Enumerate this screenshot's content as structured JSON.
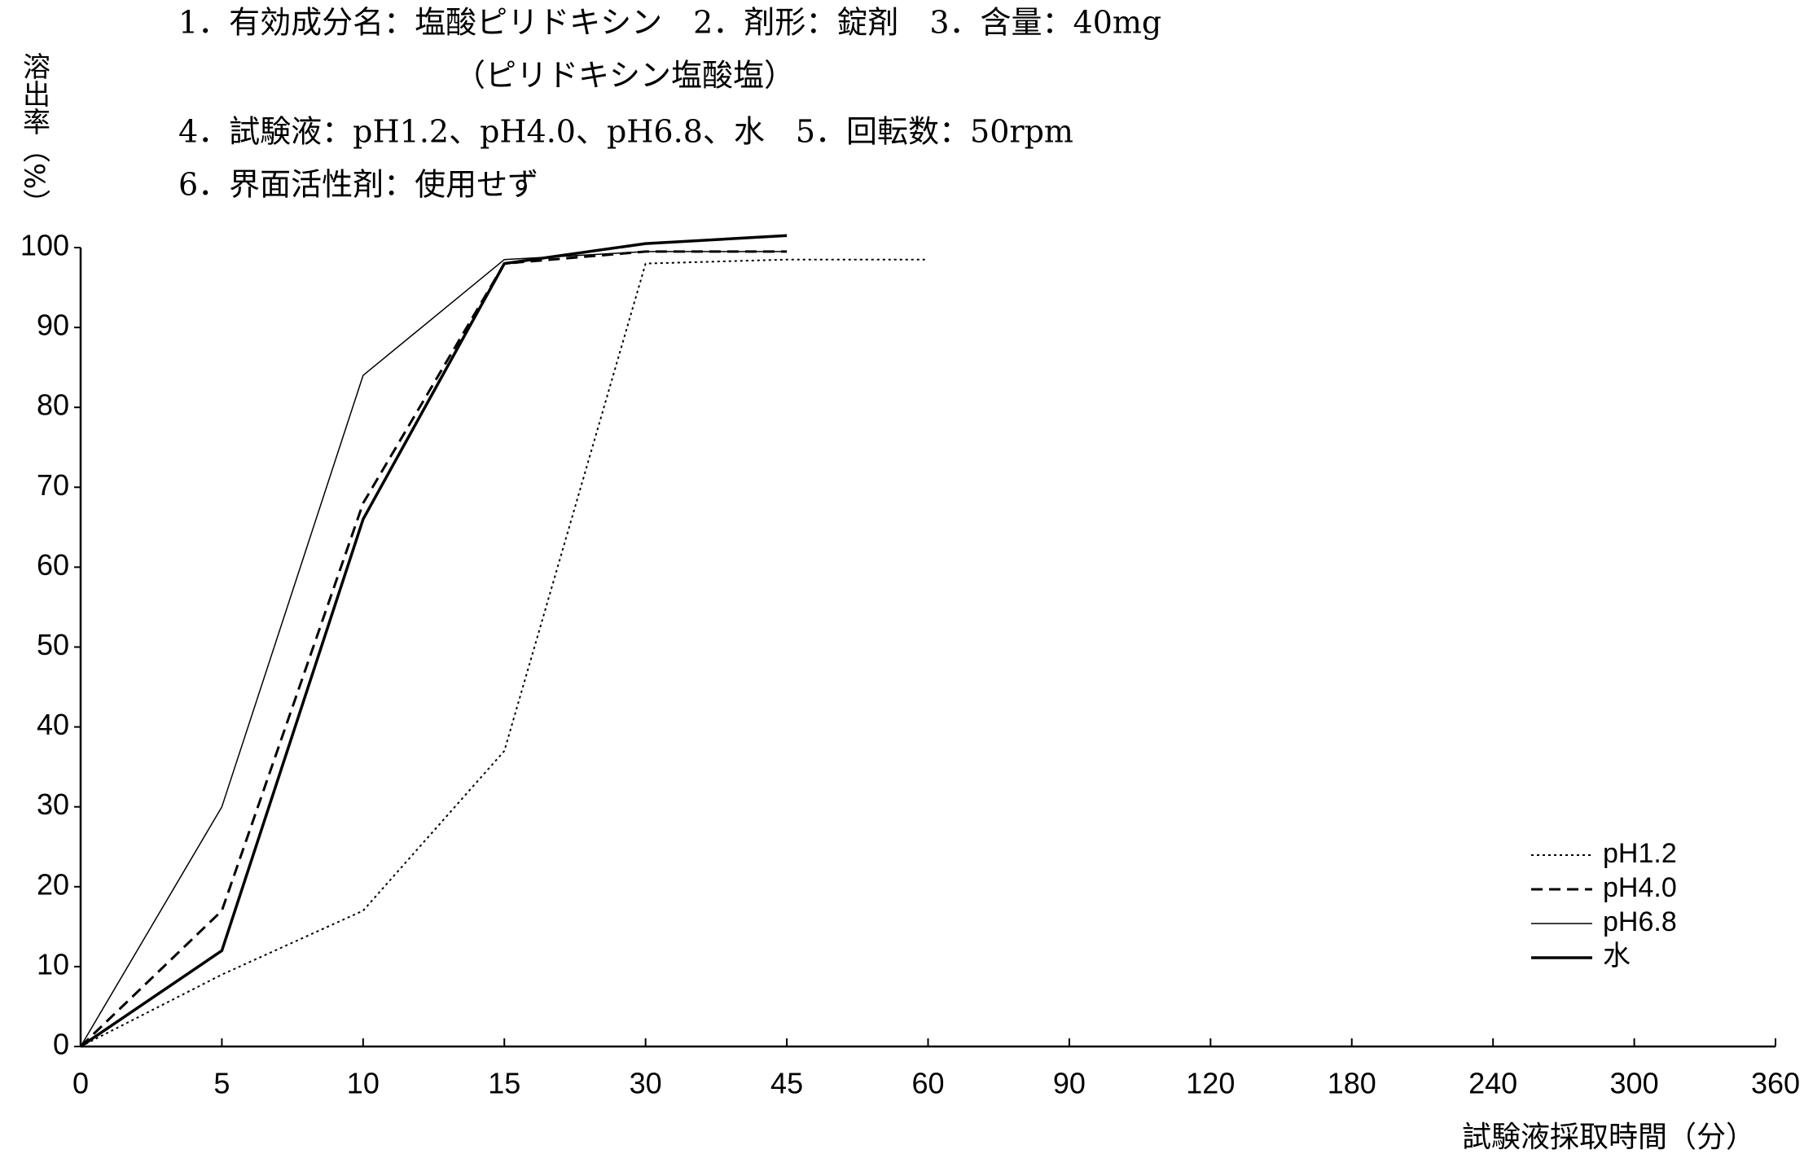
{
  "chart_data": {
    "type": "line",
    "header": [
      "1．有効成分名：塩酸ピリドキシン　2．剤形：錠剤　3．含量：40mg",
      "（ピリドキシン塩酸塩）",
      "4．試験液：pH1.2、pH4.0、pH6.8、水　5．回転数：50rpm",
      "6．界面活性剤：使用せず"
    ],
    "ylabel": "溶出率（%）",
    "xlabel": "試験液採取時間（分）",
    "categories": [
      "0",
      "5",
      "10",
      "15",
      "30",
      "45",
      "60",
      "90",
      "120",
      "180",
      "240",
      "300",
      "360"
    ],
    "series": [
      {
        "name": "pH1.2",
        "color": "#000000",
        "style": "dotted",
        "width": 2,
        "values": [
          0,
          9,
          17,
          37,
          98,
          98.5,
          98.5,
          null,
          null,
          null,
          null,
          null,
          null
        ]
      },
      {
        "name": "pH4.0",
        "color": "#000000",
        "style": "dashed",
        "width": 3,
        "values": [
          0,
          17,
          68,
          98,
          99.5,
          99.5,
          null,
          null,
          null,
          null,
          null,
          null,
          null
        ]
      },
      {
        "name": "pH6.8",
        "color": "#000000",
        "style": "solid",
        "width": 1.5,
        "values": [
          0,
          30,
          84,
          98.5,
          99.5,
          99.5,
          null,
          null,
          null,
          null,
          null,
          null,
          null
        ]
      },
      {
        "name": "水",
        "color": "#000000",
        "style": "solid",
        "width": 3.5,
        "values": [
          0,
          12,
          66,
          98,
          100.5,
          101.5,
          null,
          null,
          null,
          null,
          null,
          null,
          null
        ]
      }
    ],
    "ylim": [
      0,
      100
    ],
    "yticks": [
      0,
      10,
      20,
      30,
      40,
      50,
      60,
      70,
      80,
      90,
      100
    ],
    "grid": false,
    "legend": "lower right"
  }
}
